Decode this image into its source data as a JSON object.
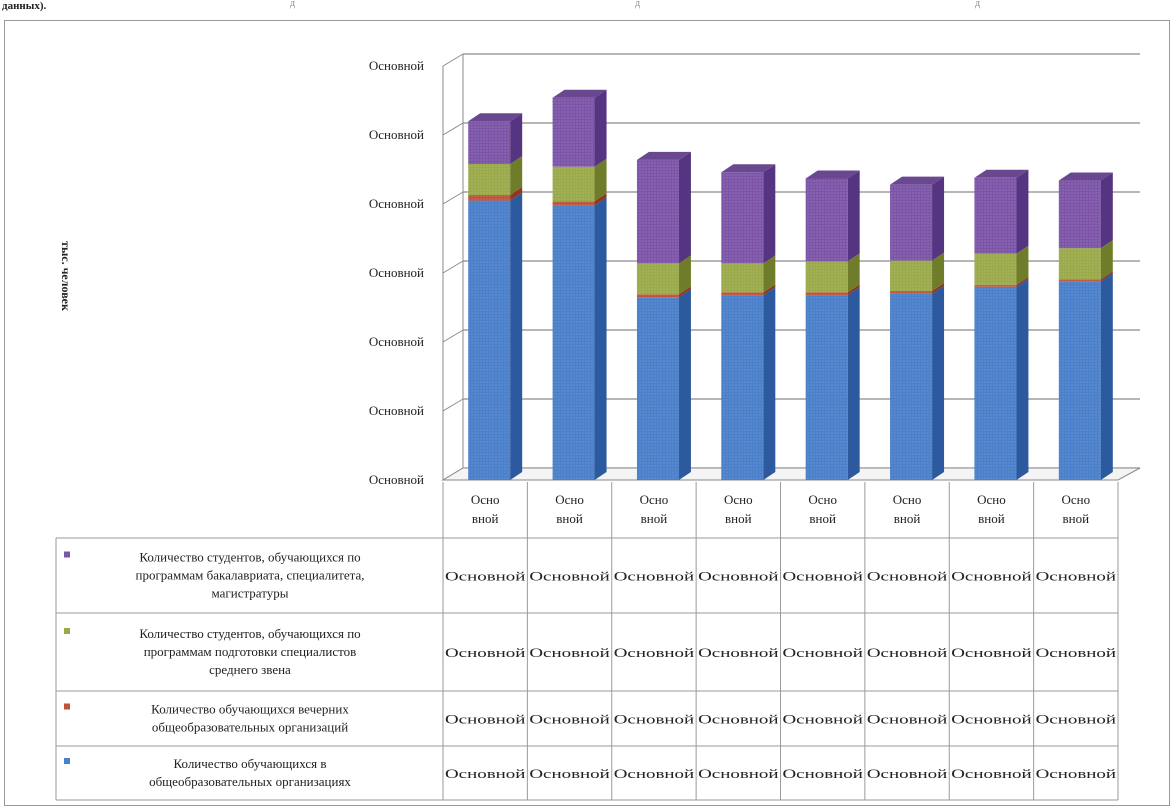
{
  "header": {
    "left_fragment": "данных).",
    "marks": [
      "д",
      "д",
      "д"
    ]
  },
  "chart_data": {
    "type": "bar",
    "stacked": true,
    "three_d": true,
    "ylabel": "тыс. человек",
    "y_tick_labels": [
      "Основной",
      "Основной",
      "Основной",
      "Основной",
      "Основной",
      "Основной",
      "Основной"
    ],
    "ylim": [
      0,
      6
    ],
    "categories": [
      "Основной",
      "Основной",
      "Основной",
      "Основной",
      "Основной",
      "Основной",
      "Основной",
      "Основной"
    ],
    "grid": true,
    "legend_position": "bottom-table",
    "series": [
      {
        "name": "Количество обучающихся в общеобразовательных организациях",
        "color": "#4a7fc9",
        "side_color": "#2d5a9e",
        "values": [
          4.05,
          3.98,
          2.65,
          2.68,
          2.68,
          2.7,
          2.8,
          2.88
        ],
        "table_cells": [
          "Основной",
          "Основной",
          "Основной",
          "Основной",
          "Основной",
          "Основной",
          "Основной",
          "Основной"
        ]
      },
      {
        "name": "Количество обучающихся вечерних общеобразовательных организаций",
        "color": "#c0533a",
        "side_color": "#8f3520",
        "values": [
          0.08,
          0.06,
          0.04,
          0.04,
          0.04,
          0.04,
          0.03,
          0.03
        ],
        "table_cells": [
          "Основной",
          "Основной",
          "Основной",
          "Основной",
          "Основной",
          "Основной",
          "Основной",
          "Основной"
        ]
      },
      {
        "name": "Количество студентов, обучающихся по программам подготовки специалистов среднего звена",
        "color": "#9aaa4a",
        "side_color": "#6f7d2a",
        "values": [
          0.45,
          0.5,
          0.45,
          0.42,
          0.45,
          0.44,
          0.45,
          0.45
        ],
        "table_cells": [
          "Основной",
          "Основной",
          "Основной",
          "Основной",
          "Основной",
          "Основной",
          "Основной",
          "Основной"
        ]
      },
      {
        "name": "Количество студентов, обучающихся по программам бакалавриата, специалитета, магистратуры",
        "color": "#7d55a8",
        "side_color": "#553581",
        "values": [
          0.62,
          1.0,
          1.5,
          1.32,
          1.2,
          1.1,
          1.1,
          0.98
        ],
        "table_cells": [
          "Основной",
          "Основной",
          "Основной",
          "Основной",
          "Основной",
          "Основной",
          "Основной",
          "Основной"
        ]
      }
    ]
  }
}
